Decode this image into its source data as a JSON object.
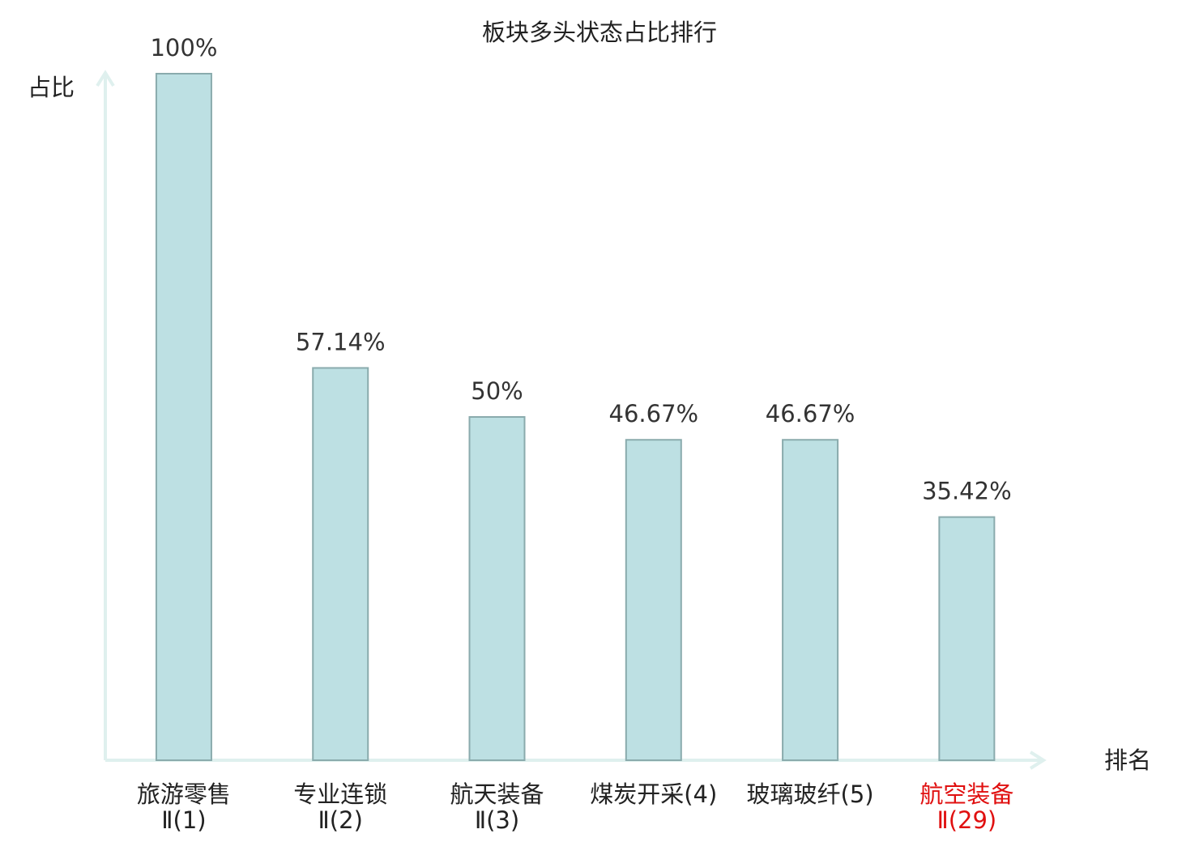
{
  "chart_data": {
    "type": "bar",
    "title": "板块多头状态占比排行",
    "y_label": "占比",
    "x_label": "排名",
    "categories": [
      [
        "旅游零售",
        "Ⅱ(1)"
      ],
      [
        "专业连锁",
        "Ⅱ(2)"
      ],
      [
        "航天装备",
        "Ⅱ(3)"
      ],
      [
        "煤炭开采(4)"
      ],
      [
        "玻璃玻纤(5)"
      ],
      [
        "航空装备",
        "Ⅱ(29)"
      ]
    ],
    "category_colors": [
      "#222222",
      "#222222",
      "#222222",
      "#222222",
      "#222222",
      "#e01010"
    ],
    "values": [
      100,
      57.14,
      50,
      46.67,
      46.67,
      35.42
    ],
    "value_labels": [
      "100%",
      "57.14%",
      "50%",
      "46.67%",
      "46.67%",
      "35.42%"
    ],
    "color": "#bde0e3",
    "edge_color": "#8aabad",
    "ylim": [
      0,
      100
    ]
  }
}
